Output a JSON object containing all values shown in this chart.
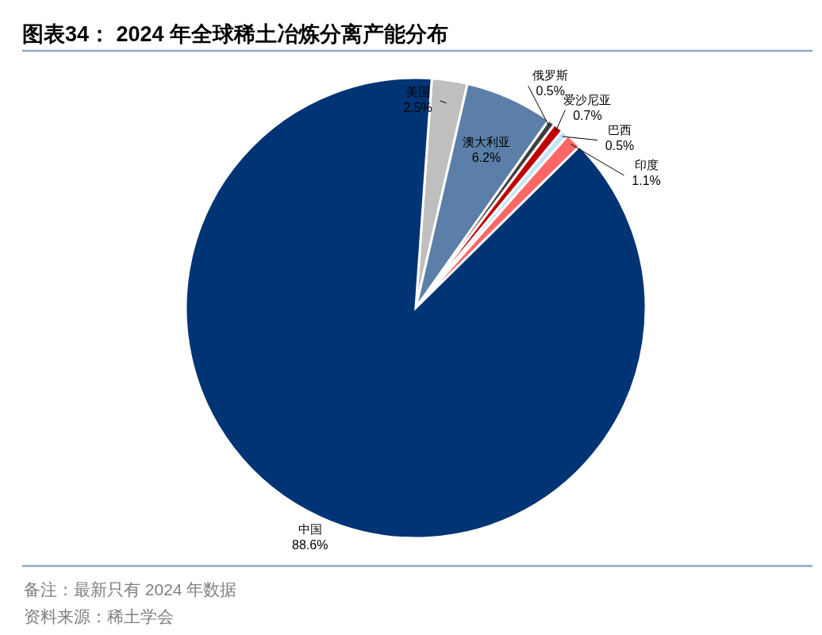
{
  "chart_data": {
    "type": "pie",
    "title": "图表34： 2024 年全球稀土冶炼分离产能分布",
    "categories": [
      "美国",
      "澳大利亚",
      "俄罗斯",
      "爱沙尼亚",
      "巴西",
      "印度",
      "中国"
    ],
    "values": [
      2.5,
      6.2,
      0.5,
      0.7,
      0.5,
      1.1,
      88.6
    ],
    "colors": [
      "#bfbfbf",
      "#5b7fa8",
      "#404040",
      "#c00000",
      "#bfe6f7",
      "#ff6666",
      "#003474"
    ],
    "value_labels": [
      "2.5%",
      "6.2%",
      "0.5%",
      "0.7%",
      "0.5%",
      "1.1%",
      "88.6%"
    ],
    "annotations": [
      "备注：最新只有 2024 年数据",
      "资料来源：稀土学会"
    ]
  }
}
